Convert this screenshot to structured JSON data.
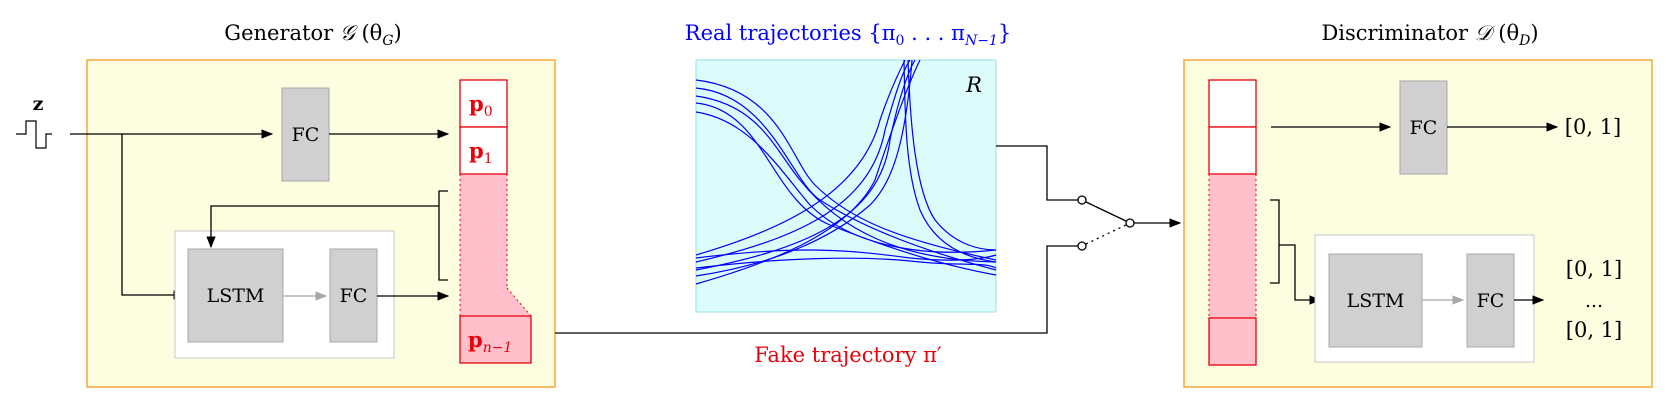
{
  "generator": {
    "title": "Generator",
    "symbol": "𝒢",
    "param": "(θ",
    "param_sub": "G",
    "param_close": ")"
  },
  "input_label": "z",
  "discriminator": {
    "title": "Discriminator",
    "symbol": "𝒟",
    "param": "(θ",
    "param_sub": "D",
    "param_close": ")"
  },
  "real": {
    "title": "Real trajectories {π",
    "sub0": "0",
    "dots": " . . . π",
    "sub1": "N−1",
    "close": "}",
    "region_label": "R"
  },
  "fake": {
    "title": "Fake trajectory π′"
  },
  "blocks": {
    "fc": "FC",
    "lstm": "LSTM"
  },
  "points": {
    "p": "p",
    "p0_sub": "0",
    "p1_sub": "1",
    "pn_sub": "n−1"
  },
  "outputs": {
    "top": "[0, 1]",
    "mid1": "[0, 1]",
    "dots": "...",
    "mid2": "[0, 1]"
  },
  "colors": {
    "yellow_bg": "#fdfde0",
    "yellow_border": "#f2a93b",
    "cyan_bg": "#dcfcfc",
    "pink": "#ffc0cb",
    "red": "#e8000b",
    "blue": "#0000ff",
    "gray_block": "#d0d0d0"
  }
}
